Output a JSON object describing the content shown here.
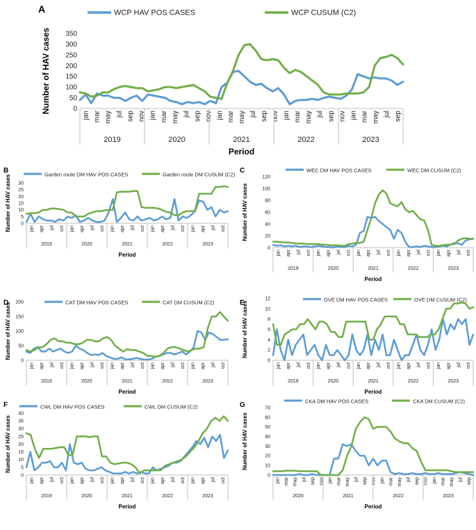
{
  "chart_data": [
    {
      "id": "A",
      "type": "line",
      "panel_letter": "A",
      "ylabel": "Number of HAV cases",
      "xlabel": "Period",
      "ylim": [
        0,
        350
      ],
      "yticks": [
        0,
        50,
        100,
        150,
        200,
        250,
        300,
        350
      ],
      "years": [
        "2019",
        "2020",
        "2021",
        "2022",
        "2023"
      ],
      "x_ticks": [
        "jan",
        "mar",
        "may",
        "jul",
        "sep",
        "nov",
        "jan",
        "mar",
        "may",
        "jul",
        "sep",
        "nov",
        "jan",
        "mar",
        "may",
        "jul",
        "sep",
        "nov",
        "jan",
        "mar",
        "may",
        "jul",
        "sep",
        "nov",
        "jan",
        "mar",
        "may",
        "jul",
        "sep"
      ],
      "series": [
        {
          "name": "WCP HAV POS CASES",
          "color": "#5b9bd5",
          "values": [
            40,
            65,
            25,
            70,
            60,
            60,
            50,
            50,
            35,
            50,
            60,
            35,
            65,
            60,
            55,
            50,
            35,
            30,
            20,
            30,
            25,
            30,
            20,
            35,
            25,
            100,
            120,
            170,
            175,
            150,
            125,
            110,
            115,
            95,
            80,
            95,
            65,
            20,
            35,
            40,
            40,
            45,
            40,
            50,
            55,
            50,
            45,
            60,
            90,
            160,
            150,
            140,
            145,
            140,
            140,
            130,
            110,
            125
          ]
        },
        {
          "name": "WCP  CUSUM (C2)",
          "color": "#70ad47",
          "values": [
            75,
            70,
            55,
            60,
            75,
            75,
            90,
            100,
            105,
            100,
            95,
            95,
            80,
            85,
            90,
            100,
            100,
            95,
            100,
            105,
            110,
            95,
            80,
            55,
            50,
            45,
            120,
            175,
            250,
            295,
            300,
            270,
            230,
            225,
            230,
            225,
            190,
            165,
            180,
            170,
            150,
            130,
            110,
            75,
            65,
            65,
            65,
            70,
            70,
            70,
            75,
            100,
            200,
            235,
            240,
            250,
            235,
            205
          ]
        }
      ]
    },
    {
      "id": "B",
      "type": "line",
      "panel_letter": "B",
      "ylabel": "Number of HAV cases",
      "xlabel": "Period",
      "ylim": [
        0,
        30
      ],
      "yticks": [
        0,
        5,
        10,
        15,
        20,
        25,
        30
      ],
      "years": [
        "2019",
        "2020",
        "2021",
        "2022",
        "2023"
      ],
      "x_ticks": [
        "jan",
        "apr",
        "jul",
        "oct",
        "jan",
        "apr",
        "jul",
        "oct",
        "jan",
        "apr",
        "jul",
        "oct",
        "jan",
        "apr",
        "jul",
        "oct",
        "jan",
        "apr",
        "jul",
        "oct"
      ],
      "series": [
        {
          "name": "Garden route DM HAV POS CASES",
          "color": "#5b9bd5",
          "values": [
            1,
            7,
            1,
            5,
            3,
            2,
            2,
            1,
            3,
            2,
            5,
            4,
            6,
            1,
            2,
            4,
            2,
            1,
            1,
            2,
            8,
            18,
            1,
            4,
            8,
            3,
            2,
            5,
            2,
            3,
            4,
            2,
            3,
            5,
            3,
            4,
            18,
            2,
            5,
            4,
            6,
            9,
            17,
            16,
            10,
            12,
            5,
            10,
            8,
            9
          ]
        },
        {
          "name": "Garden route DM CUSUM (C2)",
          "color": "#70ad47",
          "values": [
            7,
            7.5,
            7.5,
            8,
            10,
            10,
            11,
            11,
            10.5,
            10,
            8,
            8,
            5,
            5,
            5,
            7,
            8,
            9,
            9,
            9.5,
            10,
            10,
            23,
            23.5,
            23.5,
            23.5,
            24,
            24,
            12,
            11.5,
            11.5,
            11.5,
            11,
            10,
            8.5,
            8,
            6,
            6,
            8,
            9,
            9,
            9.5,
            22,
            22,
            22,
            22,
            27,
            27,
            27.5,
            27
          ]
        }
      ]
    },
    {
      "id": "C",
      "type": "line",
      "panel_letter": "C",
      "ylabel": "Number of HAV cases",
      "xlabel": "Period",
      "ylim": [
        0,
        120
      ],
      "yticks": [
        0,
        20,
        40,
        60,
        80,
        100,
        120
      ],
      "years": [
        "2019",
        "2020",
        "2021",
        "2022",
        "2023"
      ],
      "x_ticks": [
        "jan",
        "apr",
        "jul",
        "oct",
        "jan",
        "apr",
        "jul",
        "oct",
        "jan",
        "apr",
        "jul",
        "oct",
        "jan",
        "apr",
        "jul",
        "oct",
        "jan",
        "apr",
        "jul",
        "oct"
      ],
      "series": [
        {
          "name": "WEC DM HAV POS CASES",
          "color": "#5b9bd5",
          "values": [
            5,
            3,
            4,
            2,
            3,
            2,
            3,
            1,
            2,
            2,
            1,
            2,
            3,
            2,
            1,
            1,
            0,
            2,
            1,
            1,
            3,
            2,
            5,
            25,
            28,
            52,
            50,
            52,
            45,
            40,
            35,
            30,
            15,
            30,
            25,
            10,
            1,
            1,
            2,
            1,
            3,
            2,
            1,
            1,
            2,
            3,
            2,
            5,
            8,
            7,
            5,
            12,
            14,
            15
          ]
        },
        {
          "name": "WEC DM CUSUM (C2)",
          "color": "#70ad47",
          "values": [
            10,
            10,
            9,
            9,
            8.5,
            8,
            7,
            7,
            7,
            6,
            6,
            6,
            6,
            5,
            5,
            4,
            4,
            4,
            3,
            3,
            6,
            7,
            8,
            8,
            10,
            30,
            50,
            75,
            90,
            97,
            92,
            75,
            72,
            70,
            77,
            65,
            60,
            62,
            55,
            48,
            46,
            30,
            5,
            3,
            3,
            4,
            5,
            5,
            6,
            12,
            15,
            16,
            15,
            15
          ]
        }
      ]
    },
    {
      "id": "D",
      "type": "line",
      "panel_letter": "D",
      "ylabel": "Number of HAV cases",
      "xlabel": "Period",
      "ylim": [
        0,
        200
      ],
      "yticks": [
        0,
        50,
        100,
        150,
        200
      ],
      "years": [
        "2019",
        "2020",
        "2021",
        "2022",
        "2023"
      ],
      "x_ticks": [
        "jan",
        "apr",
        "jul",
        "oct",
        "jan",
        "apr",
        "jul",
        "oct",
        "jan",
        "apr",
        "jul",
        "oct",
        "jan",
        "apr",
        "jul",
        "oct",
        "jan",
        "apr",
        "jul",
        "oct"
      ],
      "series": [
        {
          "name": "CAT DM HAV POS CASES",
          "color": "#5b9bd5",
          "values": [
            30,
            25,
            40,
            45,
            30,
            30,
            40,
            30,
            35,
            40,
            30,
            25,
            30,
            50,
            40,
            35,
            25,
            18,
            20,
            18,
            25,
            15,
            10,
            5,
            5,
            10,
            3,
            3,
            5,
            8,
            5,
            2,
            3,
            5,
            12,
            15,
            20,
            25,
            25,
            20,
            25,
            30,
            20,
            30,
            45,
            100,
            95,
            70,
            95,
            90,
            80,
            70,
            70,
            72
          ]
        },
        {
          "name": "CAT DM CUSUM (C2)",
          "color": "#70ad47",
          "values": [
            35,
            30,
            35,
            45,
            45,
            55,
            70,
            75,
            65,
            65,
            60,
            60,
            55,
            55,
            60,
            70,
            70,
            65,
            65,
            75,
            80,
            70,
            50,
            40,
            30,
            38,
            35,
            35,
            30,
            25,
            15,
            15,
            12,
            15,
            25,
            40,
            45,
            45,
            40,
            35,
            30,
            35,
            40,
            40,
            45,
            110,
            150,
            150,
            165,
            150,
            135
          ]
        }
      ]
    },
    {
      "id": "E",
      "type": "line",
      "panel_letter": "E",
      "ylabel": "Number of HAV cases",
      "xlabel": "Period",
      "ylim": [
        0,
        12
      ],
      "yticks": [
        0,
        2,
        4,
        6,
        8,
        10,
        12
      ],
      "years": [
        "2019",
        "2020",
        "2021",
        "2022",
        "2023"
      ],
      "x_ticks": [
        "jan",
        "apr",
        "jul",
        "oct",
        "jan",
        "apr",
        "jul",
        "oct",
        "jan",
        "apr",
        "jul",
        "oct",
        "jan",
        "apr",
        "jul",
        "oct",
        "jan",
        "apr",
        "jul",
        "oct"
      ],
      "series": [
        {
          "name": "OVE DM HAV POS CASES",
          "color": "#5b9bd5",
          "values": [
            1,
            6,
            2,
            0,
            4,
            1,
            3,
            4,
            5,
            1,
            2,
            3,
            1,
            0,
            3,
            1,
            1,
            2,
            1,
            0,
            1,
            5,
            2,
            1,
            2,
            5,
            1,
            4,
            2,
            5,
            1,
            1,
            4,
            2,
            0,
            1,
            1,
            3,
            5,
            2,
            1,
            3,
            6,
            2,
            4,
            8,
            5,
            7,
            6,
            8,
            7,
            8,
            3,
            5
          ]
        },
        {
          "name": "OVE DM CUSUM (C2)",
          "color": "#70ad47",
          "values": [
            7,
            3,
            3,
            5,
            5.5,
            6,
            6,
            7,
            7,
            8,
            7,
            6,
            7.5,
            7.5,
            7,
            5.5,
            5.5,
            4.5,
            4.5,
            7.5,
            7.5,
            7.5,
            7.5,
            7.5,
            7.5,
            4,
            4,
            6,
            7,
            8.5,
            8.5,
            8.5,
            8.5,
            7,
            7,
            5,
            5,
            5,
            4.5,
            4.5,
            4.5,
            5,
            5,
            6,
            8,
            10,
            10,
            11,
            11,
            11.2,
            11,
            10,
            10.3
          ]
        }
      ]
    },
    {
      "id": "F",
      "type": "line",
      "panel_letter": "F",
      "ylabel": "Number of HAV cases",
      "xlabel": "Period",
      "ylim": [
        0,
        40
      ],
      "yticks": [
        0,
        5,
        10,
        15,
        20,
        25,
        30,
        35,
        40
      ],
      "years": [
        "2019",
        "2020",
        "2021",
        "2022",
        "2023"
      ],
      "x_ticks": [
        "jan",
        "apr",
        "jul",
        "oct",
        "jan",
        "apr",
        "jul",
        "oct",
        "jan",
        "apr",
        "jul",
        "oct",
        "jan",
        "apr",
        "jul",
        "oct",
        "jan",
        "apr",
        "jul",
        "oct"
      ],
      "series": [
        {
          "name": "CWL DM HAV POS CASES",
          "color": "#5b9bd5",
          "values": [
            5,
            15,
            3,
            5,
            8,
            8,
            9,
            5,
            5,
            8,
            3,
            20,
            8,
            7,
            8,
            4,
            3,
            3,
            4,
            5,
            3,
            2,
            1,
            1,
            1,
            2,
            1,
            2,
            1,
            2,
            1,
            1,
            5,
            3,
            4,
            5,
            6,
            8,
            8,
            9,
            12,
            15,
            18,
            22,
            20,
            24,
            18,
            25,
            22,
            26,
            11,
            16
          ]
        },
        {
          "name": "CWL DM CUSUM (C2)",
          "color": "#70ad47",
          "values": [
            27,
            26,
            17,
            11,
            17,
            17,
            17,
            17.5,
            18,
            18,
            13,
            13,
            25,
            25,
            25,
            24.5,
            25,
            25,
            12,
            12,
            8,
            7,
            7.5,
            8,
            8,
            7,
            5,
            1,
            3,
            3,
            3,
            3,
            3,
            6,
            7,
            8,
            9,
            10,
            12,
            15,
            18,
            22,
            27,
            30,
            35,
            37,
            35,
            38,
            35
          ]
        }
      ]
    },
    {
      "id": "G",
      "type": "line",
      "panel_letter": "G",
      "ylabel": "Number of HAV cases",
      "xlabel": "Period",
      "ylim": [
        0,
        70
      ],
      "yticks": [
        0,
        10,
        20,
        30,
        40,
        50,
        60,
        70
      ],
      "years": [
        "2020",
        "2021",
        "2022",
        "2023"
      ],
      "x_ticks": [
        "jan",
        "mar",
        "may",
        "jul",
        "sep",
        "nov",
        "jan",
        "mar",
        "may",
        "jul",
        "sep",
        "nov",
        "jan",
        "mar",
        "may",
        "jul",
        "sep",
        "nov",
        "jan",
        "mar",
        "may",
        "jul",
        "sep"
      ],
      "series": [
        {
          "name": "CKA DM HAV POS CASES",
          "color": "#5b9bd5",
          "values": [
            0,
            0,
            0,
            0,
            0,
            0,
            1,
            0,
            0,
            1,
            0,
            0,
            0,
            0,
            17,
            17,
            32,
            30,
            32,
            25,
            20,
            20,
            10,
            17,
            10,
            15,
            15,
            3,
            1,
            2,
            1,
            1,
            2,
            1,
            1,
            2,
            1,
            1,
            2,
            1,
            1,
            1,
            2,
            3,
            2,
            1,
            0
          ]
        },
        {
          "name": "CKA DM CUSUM (C2)",
          "color": "#70ad47",
          "values": [
            4,
            4,
            4,
            4.5,
            4.5,
            4.5,
            4,
            4,
            4,
            4,
            4,
            0,
            0,
            0,
            0,
            0,
            5,
            20,
            30,
            48,
            55,
            60,
            58,
            48,
            50,
            50,
            50,
            45,
            38,
            35,
            33,
            33,
            28,
            25,
            14,
            5,
            5,
            5,
            5,
            5,
            5,
            4,
            3,
            3,
            3,
            3,
            3
          ]
        }
      ]
    }
  ]
}
